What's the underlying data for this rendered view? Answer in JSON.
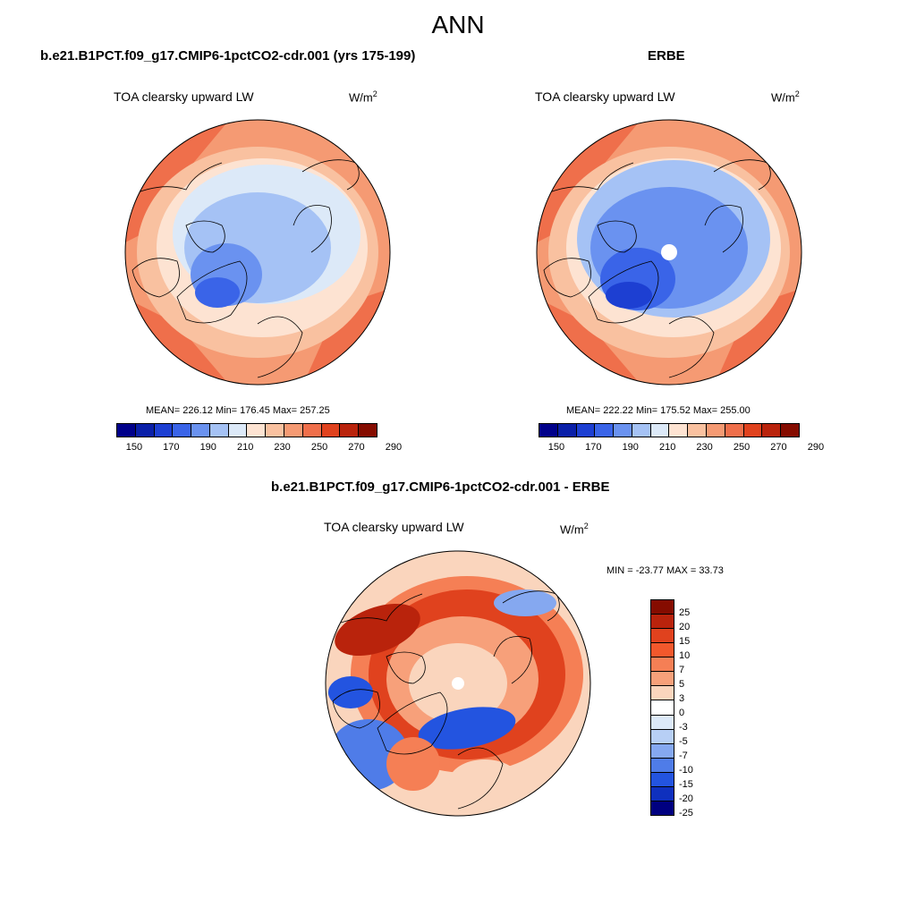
{
  "figure": {
    "title": "ANN"
  },
  "panel_model": {
    "case": "b.e21.B1PCT.f09_g17.CMIP6-1pctCO2-cdr.001 (yrs 175-199)",
    "variable": "TOA clearsky upward LW",
    "units_base": "W/m",
    "units_sup": "2",
    "stats": "MEAN= 226.12  Min= 176.45  Max= 257.25"
  },
  "panel_obs": {
    "case": "ERBE",
    "variable": "TOA clearsky upward LW",
    "units_base": "W/m",
    "units_sup": "2",
    "stats": "MEAN= 222.22  Min= 175.52  Max= 255.00"
  },
  "panel_diff": {
    "case": "b.e21.B1PCT.f09_g17.CMIP6-1pctCO2-cdr.001 - ERBE",
    "variable": "TOA clearsky upward LW",
    "units_base": "W/m",
    "units_sup": "2",
    "stats": "MIN = -23.77 MAX =  33.73"
  },
  "colorbar_abs": {
    "colors": [
      "#00008a",
      "#0a1fa8",
      "#1d3fd2",
      "#3a64e8",
      "#6a92f0",
      "#a5c2f5",
      "#dce9f8",
      "#fde3d2",
      "#f9c1a0",
      "#f59a73",
      "#ef6f4b",
      "#e0421e",
      "#b9230c",
      "#850c00"
    ],
    "labels": [
      "150",
      "170",
      "190",
      "210",
      "230",
      "250",
      "270",
      "290"
    ]
  },
  "colorbar_diff": {
    "colors": [
      "#850c00",
      "#b9230c",
      "#e0421e",
      "#f2582c",
      "#f57f55",
      "#f7a07a",
      "#fad5bd",
      "#ffffff",
      "#dce9f8",
      "#b7cff5",
      "#85a8f0",
      "#4f7ce8",
      "#2354e0",
      "#0f30be",
      "#000080"
    ],
    "labels": [
      "25",
      "20",
      "15",
      "10",
      "7",
      "5",
      "3",
      "0",
      "-3",
      "-5",
      "-7",
      "-10",
      "-15",
      "-20",
      "-25"
    ]
  },
  "map_colors": {
    "deep_blue": "#1d3fd2",
    "blue": "#6a92f0",
    "light_blue": "#a5c2f5",
    "pale_blue": "#dce9f8",
    "pale_orange": "#fde3d2",
    "light_orange": "#f9c1a0",
    "orange": "#f59a73",
    "red_orange": "#ef6f4b",
    "red": "#e0421e"
  }
}
